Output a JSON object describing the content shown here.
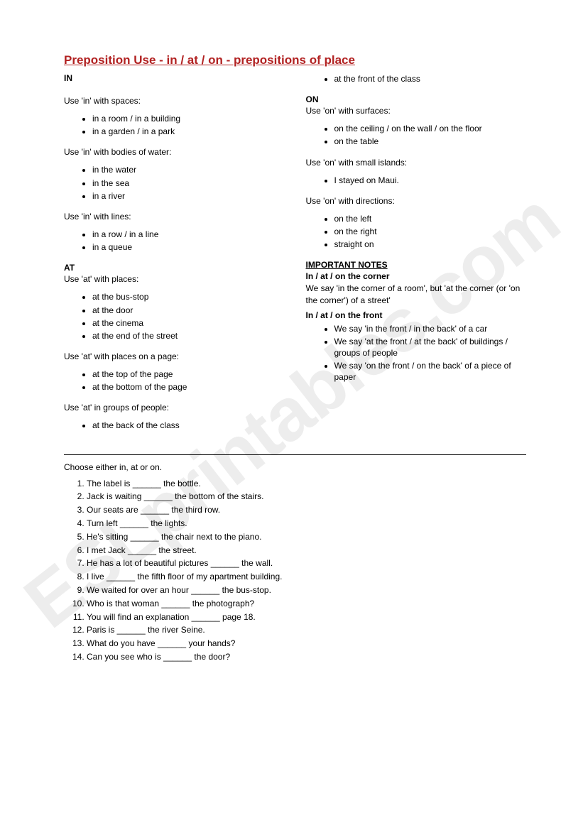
{
  "title": "Preposition Use - in / at / on - prepositions of place",
  "watermark": "ESLprintables.com",
  "col_left": {
    "in": {
      "head": "IN",
      "groups": [
        {
          "lead": "Use 'in' with spaces:",
          "items": [
            "in a room / in a building",
            "in a garden / in a park"
          ]
        },
        {
          "lead": "Use 'in' with bodies of water:",
          "items": [
            "in the water",
            "in the sea",
            "in a river"
          ]
        },
        {
          "lead": "Use 'in' with lines:",
          "items": [
            "in a row / in a line",
            "in a queue"
          ]
        }
      ]
    },
    "at": {
      "head": "AT",
      "groups": [
        {
          "lead": "Use 'at' with places:",
          "items": [
            "at the bus-stop",
            "at the door",
            "at the cinema",
            "at the end of the street"
          ]
        },
        {
          "lead": "Use 'at' with places on a page:",
          "items": [
            "at the top of the page",
            "at the bottom of the page"
          ]
        },
        {
          "lead": "Use 'at' in groups of people:",
          "items": [
            "at the back of the class"
          ]
        }
      ]
    }
  },
  "col_right": {
    "top_items": [
      "at the front of the class"
    ],
    "on": {
      "head": "ON",
      "groups": [
        {
          "lead": "Use 'on' with surfaces:",
          "items": [
            "on the ceiling / on the wall / on the floor",
            "on the table"
          ]
        },
        {
          "lead": "Use 'on' with small islands:",
          "items": [
            "I stayed on Maui."
          ]
        },
        {
          "lead": "Use 'on' with directions:",
          "items": [
            "on the left",
            "on the right",
            "straight on"
          ]
        }
      ]
    },
    "notes": {
      "head": "IMPORTANT NOTES",
      "sub1": "In / at / on the corner",
      "body1": "We say 'in the corner of a room', but 'at the corner (or 'on the corner') of a street'",
      "sub2": "In / at / on the front",
      "items2": [
        "We say 'in the front / in the back' of a car",
        "We say 'at the front / at the back' of buildings / groups of people",
        "We say 'on the front / on the back' of a piece of paper"
      ]
    }
  },
  "exercise": {
    "lead": "Choose either in, at or on.",
    "items": [
      "The label is ______ the bottle.",
      "Jack is waiting ______ the bottom of the stairs.",
      "Our seats are ______ the third row.",
      "Turn left ______ the lights.",
      "He's sitting ______ the chair next to the piano.",
      "I met Jack ______ the street.",
      "He has a lot of beautiful pictures ______ the wall.",
      "I live ______ the fifth floor of my apartment building.",
      "We waited for over an hour ______ the bus-stop.",
      "Who is that woman ______ the photograph?",
      "You will find an explanation ______ page 18.",
      "Paris is ______ the river Seine.",
      " What do you have ______ your hands?",
      "Can you see who is ______ the door?"
    ]
  }
}
